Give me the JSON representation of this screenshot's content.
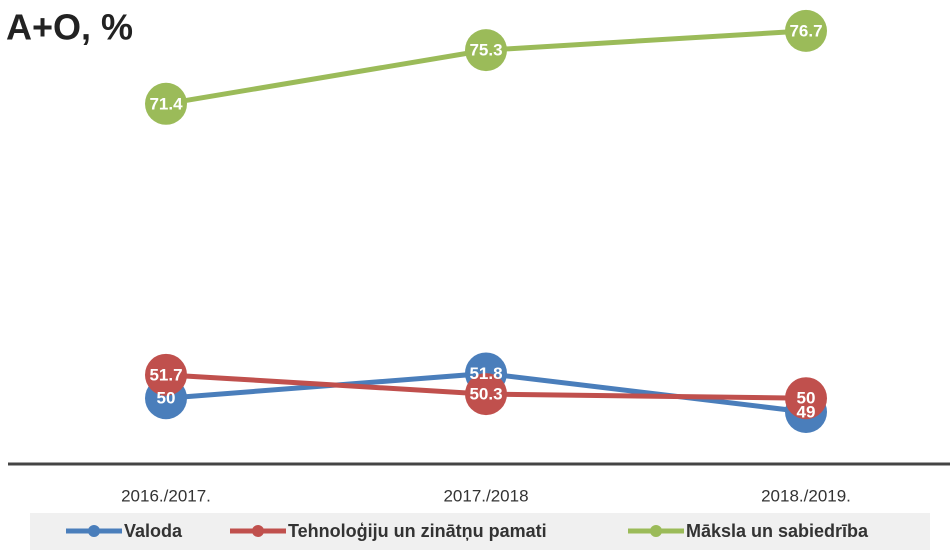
{
  "chart_data": {
    "type": "line",
    "title": "A+O, %",
    "categories": [
      "2016./2017.",
      "2017./2018",
      "2018./2019."
    ],
    "series": [
      {
        "name": "Valoda",
        "color": "#4a7ebb",
        "values": [
          50,
          51.8,
          49
        ]
      },
      {
        "name": "Tehnoloģiju un zinātņu pamati",
        "color": "#c0504d",
        "values": [
          51.7,
          50.3,
          50
        ]
      },
      {
        "name": "Māksla un sabiedrība",
        "color": "#9bbb59",
        "values": [
          71.4,
          75.3,
          76.7
        ]
      }
    ],
    "ylim": [
      45,
      78
    ],
    "legend": "bottom"
  }
}
